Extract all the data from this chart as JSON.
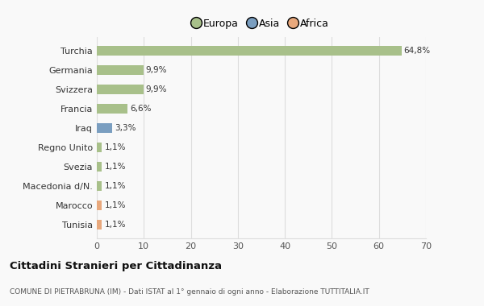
{
  "categories": [
    "Tunisia",
    "Marocco",
    "Macedonia d/N.",
    "Svezia",
    "Regno Unito",
    "Iraq",
    "Francia",
    "Svizzera",
    "Germania",
    "Turchia"
  ],
  "values": [
    1.1,
    1.1,
    1.1,
    1.1,
    1.1,
    3.3,
    6.6,
    9.9,
    9.9,
    64.8
  ],
  "labels": [
    "1,1%",
    "1,1%",
    "1,1%",
    "1,1%",
    "1,1%",
    "3,3%",
    "6,6%",
    "9,9%",
    "9,9%",
    "64,8%"
  ],
  "colors": [
    "#e8a87c",
    "#e8a87c",
    "#a8c08a",
    "#a8c08a",
    "#a8c08a",
    "#7a9ec0",
    "#a8c08a",
    "#a8c08a",
    "#a8c08a",
    "#a8c08a"
  ],
  "legend": [
    {
      "label": "Europa",
      "color": "#a8c08a"
    },
    {
      "label": "Asia",
      "color": "#7a9ec0"
    },
    {
      "label": "Africa",
      "color": "#e8a87c"
    }
  ],
  "title": "Cittadini Stranieri per Cittadinanza",
  "subtitle": "COMUNE DI PIETRABRUNA (IM) - Dati ISTAT al 1° gennaio di ogni anno - Elaborazione TUTTITALIA.IT",
  "xlim": [
    0,
    70
  ],
  "xticks": [
    0,
    10,
    20,
    30,
    40,
    50,
    60,
    70
  ],
  "background_color": "#f9f9f9",
  "grid_color": "#dddddd",
  "bar_height": 0.5
}
